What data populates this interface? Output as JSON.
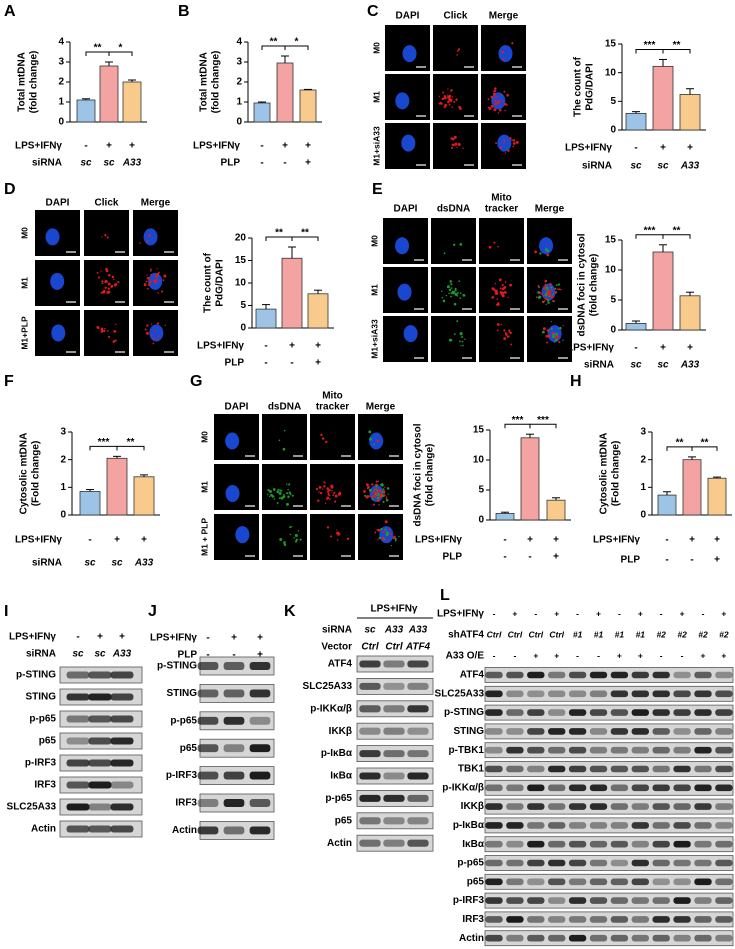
{
  "chart_data": [
    {
      "panel": "A",
      "type": "bar",
      "y_label": [
        "Total mtDNA",
        "(fold change)"
      ],
      "values": [
        1.1,
        2.8,
        2.0
      ],
      "errors": [
        0.06,
        0.2,
        0.1
      ],
      "colors": [
        "#9dc3e6",
        "#f4a3a3",
        "#f8cb8c"
      ],
      "ylim": [
        0,
        4
      ],
      "yticks": [
        0,
        1,
        2,
        3,
        4
      ],
      "significance": [
        "**",
        "*"
      ],
      "conditions": [
        {
          "label": "LPS+IFNγ",
          "values": [
            "-",
            "+",
            "+"
          ]
        },
        {
          "label": "siRNA",
          "values": [
            "sc",
            "sc",
            "A33"
          ],
          "italic": true
        }
      ]
    },
    {
      "panel": "B",
      "type": "bar",
      "y_label": [
        "Total mtDNA",
        "(fold change)"
      ],
      "values": [
        0.95,
        2.95,
        1.6
      ],
      "errors": [
        0.05,
        0.35,
        0.03
      ],
      "colors": [
        "#9dc3e6",
        "#f4a3a3",
        "#f8cb8c"
      ],
      "ylim": [
        0,
        4
      ],
      "yticks": [
        0,
        1,
        2,
        3,
        4
      ],
      "significance": [
        "**",
        "*"
      ],
      "conditions": [
        {
          "label": "LPS+IFNγ",
          "values": [
            "-",
            "+",
            "+"
          ]
        },
        {
          "label": "PLP",
          "values": [
            "-",
            "-",
            "+"
          ]
        }
      ]
    },
    {
      "type": "bar",
      "y_label": [
        "The count of",
        "PdG/DAPI"
      ],
      "values": [
        2.9,
        11.1,
        6.2
      ],
      "errors": [
        0.3,
        1.2,
        1.0
      ],
      "colors": [
        "#9dc3e6",
        "#f4a3a3",
        "#f8cb8c"
      ],
      "ylim": [
        0,
        15
      ],
      "yticks": [
        0,
        5,
        10,
        15
      ],
      "significance": [
        "***",
        "**"
      ],
      "conditions": [
        {
          "label": "LPS+IFNγ",
          "values": [
            "-",
            "+",
            "+"
          ]
        },
        {
          "label": "siRNA",
          "values": [
            "sc",
            "sc",
            "A33"
          ],
          "italic": true
        }
      ]
    },
    {
      "type": "bar",
      "y_label": [
        "The count of",
        "PdG/DAPI"
      ],
      "values": [
        4.2,
        15.5,
        7.6
      ],
      "errors": [
        1.0,
        2.5,
        0.8
      ],
      "colors": [
        "#9dc3e6",
        "#f4a3a3",
        "#f8cb8c"
      ],
      "ylim": [
        0,
        20
      ],
      "yticks": [
        0,
        5,
        10,
        15,
        20
      ],
      "significance": [
        "**",
        "**"
      ],
      "conditions": [
        {
          "label": "LPS+IFNγ",
          "values": [
            "-",
            "+",
            "+"
          ]
        },
        {
          "label": "PLP",
          "values": [
            "-",
            "-",
            "+"
          ]
        }
      ]
    },
    {
      "type": "bar",
      "y_label": [
        "dsDNA foci in cytosol",
        "(fold change)"
      ],
      "values": [
        1.1,
        13.0,
        5.7
      ],
      "errors": [
        0.4,
        1.2,
        0.6
      ],
      "colors": [
        "#9dc3e6",
        "#f4a3a3",
        "#f8cb8c"
      ],
      "ylim": [
        0,
        15
      ],
      "yticks": [
        0,
        5,
        10,
        15
      ],
      "significance": [
        "***",
        "**"
      ],
      "conditions": [
        {
          "label": "LPS+IFNγ",
          "values": [
            "-",
            "+",
            "+"
          ]
        },
        {
          "label": "siRNA",
          "values": [
            "sc",
            "sc",
            "A33"
          ],
          "italic": true
        }
      ]
    },
    {
      "panel": "F",
      "type": "bar",
      "y_label": [
        "Cytosolic mtDNA",
        "(Fold change)"
      ],
      "values": [
        0.85,
        2.05,
        1.38
      ],
      "errors": [
        0.07,
        0.07,
        0.07
      ],
      "colors": [
        "#9dc3e6",
        "#f4a3a3",
        "#f8cb8c"
      ],
      "ylim": [
        0,
        3
      ],
      "yticks": [
        0,
        1,
        2,
        3
      ],
      "significance": [
        "***",
        "**"
      ],
      "conditions": [
        {
          "label": "LPS+IFNγ",
          "values": [
            "-",
            "+",
            "+"
          ]
        },
        {
          "label": "siRNA",
          "values": [
            "sc",
            "sc",
            "A33"
          ],
          "italic": true
        }
      ]
    },
    {
      "type": "bar",
      "y_label": [
        "dsDNA foci in cytosol",
        "(fold change)"
      ],
      "values": [
        1.1,
        13.7,
        3.3
      ],
      "errors": [
        0.2,
        0.6,
        0.4
      ],
      "colors": [
        "#9dc3e6",
        "#f4a3a3",
        "#f8cb8c"
      ],
      "ylim": [
        0,
        15
      ],
      "yticks": [
        0,
        5,
        10,
        15
      ],
      "significance": [
        "***",
        "***"
      ],
      "conditions": [
        {
          "label": "LPS+IFNγ",
          "values": [
            "-",
            "+",
            "+"
          ]
        },
        {
          "label": "PLP",
          "values": [
            "-",
            "-",
            "+"
          ]
        }
      ]
    },
    {
      "panel": "H",
      "type": "bar",
      "y_label": [
        "Cytosolic mtDNA",
        "(Fold change)"
      ],
      "values": [
        0.72,
        2.0,
        1.33
      ],
      "errors": [
        0.12,
        0.1,
        0.04
      ],
      "colors": [
        "#9dc3e6",
        "#f4a3a3",
        "#f8cb8c"
      ],
      "ylim": [
        0,
        3
      ],
      "yticks": [
        0,
        1,
        2,
        3
      ],
      "significance": [
        "**",
        "**"
      ],
      "conditions": [
        {
          "label": "LPS+IFNγ",
          "values": [
            "-",
            "+",
            "+"
          ]
        },
        {
          "label": "PLP",
          "values": [
            "-",
            "-",
            "+"
          ]
        }
      ]
    }
  ],
  "microscopy": [
    {
      "panel": "C",
      "columns": [
        [
          "DAPI"
        ],
        [
          "Click"
        ],
        [
          "Merge"
        ]
      ],
      "column_colors": [
        "#1d4fe6",
        "#e31a1c",
        "#000000"
      ],
      "rows": [
        "M0",
        "M1",
        "M1+siA33"
      ]
    },
    {
      "panel": "D",
      "columns": [
        [
          "DAPI"
        ],
        [
          "Click"
        ],
        [
          "Merge"
        ]
      ],
      "column_colors": [
        "#1d4fe6",
        "#e31a1c",
        "#000000"
      ],
      "rows": [
        "M0",
        "M1",
        "M1+PLP"
      ]
    },
    {
      "panel": "E",
      "columns": [
        [
          "DAPI"
        ],
        [
          "dsDNA"
        ],
        [
          "Mito",
          "tracker"
        ],
        [
          "Merge"
        ]
      ],
      "column_colors": [
        "#1d4fe6",
        "#1a9c2e",
        "#e31a1c",
        "#000000"
      ],
      "rows": [
        "M0",
        "M1",
        "M1+siA33"
      ]
    },
    {
      "panel": "G",
      "columns": [
        [
          "DAPI"
        ],
        [
          "dsDNA"
        ],
        [
          "Mito",
          "tracker"
        ],
        [
          "Merge"
        ]
      ],
      "column_colors": [
        "#1d4fe6",
        "#1a9c2e",
        "#e31a1c",
        "#000000"
      ],
      "rows": [
        "M0",
        "M1",
        "M1 + PLP"
      ]
    }
  ],
  "blots": [
    {
      "panel": "I",
      "conditions": [
        {
          "label": "LPS+IFNγ",
          "values": [
            "-",
            "+",
            "+"
          ]
        },
        {
          "label": "siRNA",
          "values": [
            "sc",
            "sc",
            "A33"
          ],
          "italic": true
        }
      ],
      "bands": [
        "p-STING",
        "STING",
        "p-p65",
        "p65",
        "p-IRF3",
        "IRF3",
        "SLC25A33",
        "Actin"
      ]
    },
    {
      "panel": "J",
      "conditions": [
        {
          "label": "LPS+IFNγ",
          "values": [
            "-",
            "+",
            "+"
          ]
        },
        {
          "label": "PLP",
          "values": [
            "-",
            "-",
            "+"
          ]
        }
      ],
      "bands": [
        "p-STING",
        "STING",
        "p-p65",
        "p65",
        "p-IRF3",
        "IRF3",
        "Actin"
      ]
    },
    {
      "panel": "K",
      "header": "LPS+IFNγ",
      "conditions": [
        {
          "label": "siRNA",
          "values": [
            "sc",
            "A33",
            "A33"
          ],
          "italic": true
        },
        {
          "label": "Vector",
          "values": [
            "Ctrl",
            "Ctrl",
            "ATF4"
          ],
          "italic": true
        }
      ],
      "bands": [
        "ATF4",
        "SLC25A33",
        "p-IKKα/β",
        "IKKβ",
        "p-IκBα",
        "IκBα",
        "p-p65",
        "p65",
        "Actin"
      ]
    },
    {
      "panel": "L",
      "conditions": [
        {
          "label": "LPS+IFNγ",
          "values": [
            "-",
            "+",
            "-",
            "+",
            "-",
            "+",
            "-",
            "+",
            "-",
            "+",
            "-",
            "+"
          ]
        },
        {
          "label": "shATF4",
          "values": [
            "Ctrl",
            "Ctrl",
            "Ctrl",
            "Ctrl",
            "#1",
            "#1",
            "#1",
            "#1",
            "#2",
            "#2",
            "#2",
            "#2"
          ],
          "italic": true
        },
        {
          "label": "A33 O/E",
          "values": [
            "-",
            "-",
            "+",
            "+",
            "-",
            "-",
            "+",
            "+",
            "-",
            "-",
            "+",
            "+"
          ]
        }
      ],
      "bands": [
        "ATF4",
        "SLC25A33",
        "p-STING",
        "STING",
        "p-TBK1",
        "TBK1",
        "p-IKKα/β",
        "IKKβ",
        "p-IκBα",
        "IκBα",
        "p-p65",
        "p65",
        "p-IRF3",
        "IRF3",
        "Actin"
      ]
    }
  ]
}
